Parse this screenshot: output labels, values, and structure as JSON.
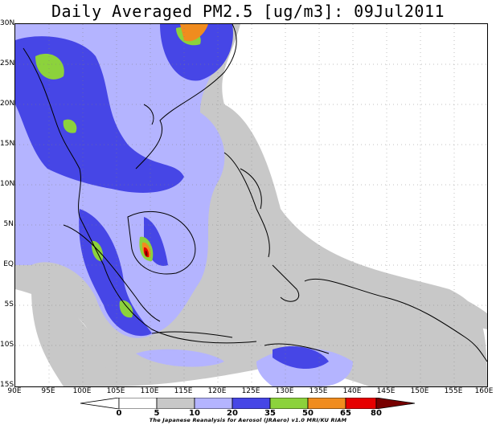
{
  "title": "Daily Averaged PM2.5 [ug/m3]: 09Jul2011",
  "lat_labels": [
    "30N",
    "25N",
    "20N",
    "15N",
    "10N",
    "5N",
    "EQ",
    "5S",
    "10S",
    "15S"
  ],
  "lon_labels": [
    "90E",
    "95E",
    "100E",
    "105E",
    "110E",
    "115E",
    "120E",
    "125E",
    "130E",
    "135E",
    "140E",
    "145E",
    "150E",
    "155E",
    "160E"
  ],
  "colorbar": {
    "levels": [
      "0",
      "5",
      "10",
      "20",
      "35",
      "50",
      "65",
      "80"
    ],
    "colors": [
      "#ffffff",
      "#ffffff",
      "#c8c8c8",
      "#b4b4ff",
      "#4646e6",
      "#8cd23c",
      "#f08c1e",
      "#e60000",
      "#780000"
    ]
  },
  "credit": "The Japanese Reanalysis for Aerosol (JRAero) v1.0 MRI/KU RIAM"
}
